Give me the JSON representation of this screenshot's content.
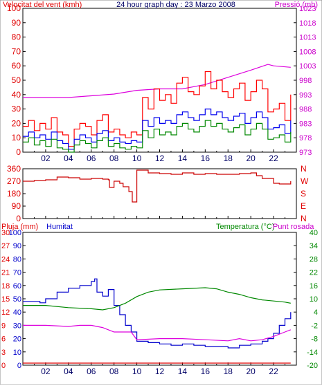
{
  "chart_data": [
    {
      "type": "line",
      "header": {
        "left": "Velocitat del vent (kmh)",
        "center": "24 hour graph day : 23 Marzo 2008",
        "right": "Pressió (mb)"
      },
      "x_ticks": [
        "02",
        "04",
        "06",
        "08",
        "10",
        "12",
        "14",
        "16",
        "18",
        "20",
        "22"
      ],
      "x_range": [
        0,
        24
      ],
      "y_left": {
        "label": "Velocitat del vent (kmh)",
        "range": [
          0,
          100
        ],
        "ticks": [
          0,
          10,
          20,
          30,
          40,
          50,
          60,
          70,
          80,
          90,
          100
        ],
        "color": "#e00000"
      },
      "y_right": {
        "label": "Pressió (mb)",
        "range": [
          973,
          1023
        ],
        "ticks": [
          973,
          978,
          983,
          988,
          993,
          998,
          1003,
          1008,
          1013,
          1018,
          1023
        ],
        "color": "#cc00cc"
      },
      "series": [
        {
          "axis": "right",
          "color": "#dd00dd",
          "x": [
            0,
            4,
            8,
            10,
            12,
            14,
            16,
            18,
            20,
            21.5,
            22,
            23.5
          ],
          "values": [
            992,
            992,
            993.2,
            994.5,
            995,
            995,
            996.5,
            999,
            1001.5,
            1003.5,
            1003,
            1002.5
          ]
        },
        {
          "axis": "left",
          "color": "#ff0000",
          "x": [
            0,
            0.5,
            1,
            1.5,
            2,
            2.5,
            3,
            3.5,
            4,
            4.5,
            5,
            5.5,
            6,
            6.5,
            7,
            7.5,
            8,
            8.5,
            9,
            9.5,
            10,
            10.5,
            11,
            11.5,
            12,
            12.5,
            13,
            13.5,
            14,
            14.5,
            15,
            15.5,
            16,
            16.5,
            17,
            17.5,
            18,
            18.5,
            19,
            19.5,
            20,
            20.5,
            21,
            21.5,
            22,
            22.5,
            23,
            23.5
          ],
          "values": [
            18,
            22,
            15,
            20,
            16,
            24,
            14,
            12,
            4,
            16,
            20,
            18,
            12,
            22,
            26,
            14,
            16,
            12,
            10,
            14,
            12,
            38,
            30,
            44,
            36,
            40,
            34,
            48,
            52,
            42,
            40,
            46,
            56,
            44,
            50,
            42,
            38,
            44,
            48,
            36,
            42,
            50,
            44,
            28,
            30,
            34,
            22,
            40
          ]
        },
        {
          "axis": "left",
          "color": "#0000ee",
          "x": [
            0,
            0.5,
            1,
            1.5,
            2,
            2.5,
            3,
            3.5,
            4,
            4.5,
            5,
            5.5,
            6,
            6.5,
            7,
            7.5,
            8,
            8.5,
            9,
            9.5,
            10,
            10.5,
            11,
            11.5,
            12,
            12.5,
            13,
            13.5,
            14,
            14.5,
            15,
            15.5,
            16,
            16.5,
            17,
            17.5,
            18,
            18.5,
            19,
            19.5,
            20,
            20.5,
            21,
            21.5,
            22,
            22.5,
            23,
            23.5
          ],
          "values": [
            11,
            14,
            10,
            12,
            9,
            14,
            8,
            6,
            2,
            9,
            12,
            10,
            7,
            13,
            15,
            8,
            10,
            7,
            6,
            8,
            7,
            22,
            18,
            24,
            20,
            22,
            20,
            26,
            28,
            24,
            22,
            26,
            30,
            26,
            28,
            24,
            22,
            25,
            27,
            20,
            24,
            28,
            24,
            16,
            17,
            19,
            13,
            22
          ]
        },
        {
          "axis": "left",
          "color": "#008800",
          "x": [
            0,
            0.5,
            1,
            1.5,
            2,
            2.5,
            3,
            3.5,
            4,
            4.5,
            5,
            5.5,
            6,
            6.5,
            7,
            7.5,
            8,
            8.5,
            9,
            9.5,
            10,
            10.5,
            11,
            11.5,
            12,
            12.5,
            13,
            13.5,
            14,
            14.5,
            15,
            15.5,
            16,
            16.5,
            17,
            17.5,
            18,
            18.5,
            19,
            19.5,
            20,
            20.5,
            21,
            21.5,
            22,
            22.5,
            23,
            23.5
          ],
          "values": [
            7,
            10,
            5,
            8,
            4,
            9,
            3,
            2,
            0,
            5,
            8,
            6,
            3,
            8,
            10,
            4,
            6,
            3,
            2,
            4,
            3,
            15,
            10,
            16,
            12,
            14,
            12,
            18,
            20,
            16,
            14,
            18,
            22,
            18,
            20,
            16,
            14,
            17,
            19,
            12,
            16,
            20,
            16,
            9,
            10,
            12,
            7,
            14
          ]
        }
      ]
    },
    {
      "type": "line",
      "x_ticks": [],
      "x_range": [
        0,
        24
      ],
      "y_left": {
        "label": "",
        "range": [
          0,
          360
        ],
        "ticks": [
          0,
          90,
          180,
          270,
          360
        ],
        "color": "#e00000"
      },
      "y_right_labels": [
        "N",
        "W",
        "S",
        "E",
        "N"
      ],
      "series": [
        {
          "axis": "left",
          "color": "#cc0000",
          "x": [
            0,
            1,
            2,
            3,
            4,
            5,
            6,
            7,
            7.5,
            7.6,
            8,
            8.5,
            8.8,
            9.3,
            9.6,
            9.8,
            10,
            11,
            12,
            13,
            14,
            15,
            16,
            17,
            18,
            19,
            20,
            20.5,
            21,
            22,
            22.5,
            23,
            23.5
          ],
          "values": [
            270,
            275,
            280,
            300,
            295,
            285,
            290,
            285,
            280,
            225,
            270,
            255,
            230,
            195,
            120,
            120,
            350,
            330,
            325,
            320,
            330,
            320,
            325,
            320,
            320,
            325,
            330,
            310,
            290,
            255,
            250,
            250,
            270
          ]
        }
      ]
    },
    {
      "type": "line",
      "header": {
        "left_a": "Pluja (mm)",
        "left_b": "Humitat",
        "right_a": "Temperatura (°C)",
        "right_b": "Punt rosada"
      },
      "x_ticks": [
        "02",
        "04",
        "06",
        "08",
        "10",
        "12",
        "14",
        "16",
        "18",
        "20",
        "22"
      ],
      "x_range": [
        0,
        24
      ],
      "y_rain": {
        "label": "Pluja (mm)",
        "ticks": [
          0,
          3,
          6,
          9,
          12,
          15,
          18,
          21,
          24,
          27,
          30
        ],
        "color": "#e00000"
      },
      "y_humidity": {
        "label": "Humitat",
        "range": [
          0,
          100
        ],
        "ticks": [
          0,
          10,
          20,
          30,
          40,
          50,
          60,
          70,
          80,
          90,
          100
        ],
        "color": "#0000cc"
      },
      "y_temp": {
        "label": "Temperatura (°C)",
        "range": [
          -20,
          40
        ],
        "ticks": [
          -20,
          -14,
          -8,
          -2,
          4,
          10,
          16,
          22,
          28,
          34,
          40
        ],
        "color": "#008800"
      },
      "series": [
        {
          "axis": "humidity",
          "color": "#0000cc",
          "x": [
            0,
            1,
            1.5,
            2,
            3,
            4,
            5,
            5.5,
            6,
            6.3,
            6.5,
            7,
            7.5,
            8,
            8.5,
            9,
            9.5,
            10,
            11,
            12,
            13,
            14,
            15,
            16,
            17,
            18,
            19,
            20,
            20.5,
            21,
            21.5,
            22,
            22.5,
            23,
            23.5
          ],
          "values": [
            48,
            48,
            47,
            50,
            55,
            58,
            60,
            60,
            63,
            65,
            55,
            52,
            57,
            45,
            38,
            30,
            25,
            18,
            17,
            16,
            15,
            16,
            15,
            14,
            14,
            13,
            15,
            16,
            16,
            18,
            20,
            24,
            30,
            35,
            40
          ]
        },
        {
          "axis": "temp",
          "color": "#008800",
          "x": [
            0,
            2,
            4,
            6,
            7,
            8,
            9,
            10,
            11,
            12,
            14,
            16,
            17,
            18,
            19,
            20,
            21,
            22,
            23,
            23.5
          ],
          "values": [
            7,
            7,
            6,
            5.5,
            5,
            6,
            8,
            11,
            13,
            14,
            14.5,
            15,
            14.5,
            13,
            12,
            10.5,
            9.5,
            9,
            8.5,
            8
          ]
        },
        {
          "axis": "temp",
          "color": "#dd00dd",
          "x": [
            0,
            2,
            4,
            5,
            6,
            7,
            7.5,
            8,
            9,
            9.5,
            10,
            12,
            14,
            16,
            18,
            19,
            20,
            21,
            22,
            23,
            23.5
          ],
          "values": [
            -2,
            -2,
            -2.5,
            -2,
            -2,
            -3,
            -4,
            -5,
            -5,
            -5,
            -8.5,
            -8,
            -8,
            -8.5,
            -9,
            -8,
            -9,
            -8.5,
            -7,
            -5,
            -4
          ]
        },
        {
          "axis": "rain",
          "color": "#e00000",
          "x": [
            0,
            23.5
          ],
          "values": [
            0,
            0
          ]
        }
      ]
    }
  ]
}
